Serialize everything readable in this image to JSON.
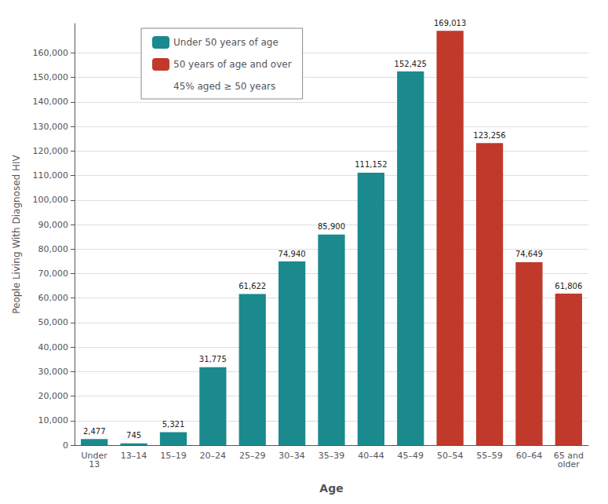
{
  "chart_data": {
    "type": "bar",
    "xlabel": "Age",
    "ylabel": "People Living With Diagnosed HIV",
    "categories": [
      "Under\n13",
      "13–14",
      "15–19",
      "20–24",
      "25–29",
      "30–34",
      "35–39",
      "40–44",
      "45–49",
      "50–54",
      "55–59",
      "60–64",
      "65 and\nolder"
    ],
    "series": [
      {
        "name": "Under 50 years of age",
        "color": "#1b8a8e",
        "values": [
          2477,
          745,
          5321,
          31775,
          61622,
          74940,
          85900,
          111152,
          152425,
          null,
          null,
          null,
          null
        ],
        "value_labels": [
          "2,477",
          "745",
          "5,321",
          "31,775",
          "61,622",
          "74,940",
          "85,900",
          "111,152",
          "152,425",
          null,
          null,
          null,
          null
        ]
      },
      {
        "name": "50 years of age and over",
        "color": "#c0392b",
        "values": [
          null,
          null,
          null,
          null,
          null,
          null,
          null,
          null,
          null,
          169013,
          123256,
          74649,
          61806
        ],
        "value_labels": [
          null,
          null,
          null,
          null,
          null,
          null,
          null,
          null,
          null,
          "169,013",
          "123,256",
          "74,649",
          "61,806"
        ]
      }
    ],
    "annotations": [
      "45% aged ≥ 50 years"
    ],
    "ylim": [
      0,
      172000
    ],
    "yticks": [
      0,
      {
        "value": 10000,
        "label": "10,000"
      },
      {
        "value": 20000,
        "label": "20,000"
      },
      {
        "value": 30000,
        "label": "30,000"
      },
      {
        "value": 40000,
        "label": "40,000"
      },
      {
        "value": 50000,
        "label": "50,000"
      },
      {
        "value": 60000,
        "label": "60,000"
      },
      {
        "value": 70000,
        "label": "70,000"
      },
      {
        "value": 80000,
        "label": "80,000"
      },
      {
        "value": 90000,
        "label": "90,000"
      },
      {
        "value": 100000,
        "label": "100,000"
      },
      {
        "value": 110000,
        "label": "110,000"
      },
      {
        "value": 120000,
        "label": "120,000"
      },
      {
        "value": 130000,
        "label": "130,000"
      },
      {
        "value": 140000,
        "label": "140,000"
      },
      {
        "value": 150000,
        "label": "150,000"
      },
      {
        "value": 160000,
        "label": "160,000"
      }
    ],
    "grid": true,
    "legend": "upper left",
    "data_labels": true
  }
}
